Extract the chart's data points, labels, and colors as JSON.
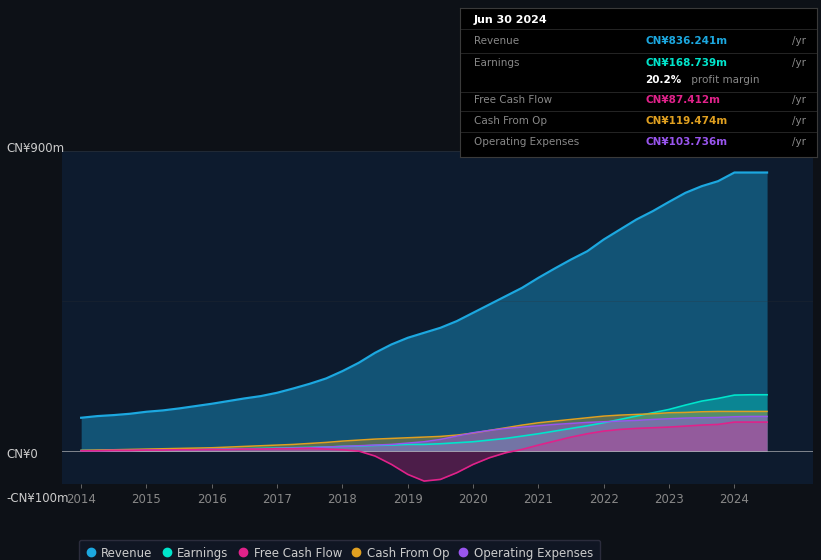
{
  "bg_color": "#0d1117",
  "plot_bg_color": "#0d1b2e",
  "ylim": [
    -100,
    900
  ],
  "xlim_start": 2013.7,
  "xlim_end": 2025.2,
  "xticks": [
    2014,
    2015,
    2016,
    2017,
    2018,
    2019,
    2020,
    2021,
    2022,
    2023,
    2024
  ],
  "colors": {
    "revenue": "#1ca8e0",
    "earnings": "#00e5cc",
    "free_cash_flow": "#e0228a",
    "cash_from_op": "#e0a020",
    "operating_expenses": "#9955ee"
  },
  "legend": [
    "Revenue",
    "Earnings",
    "Free Cash Flow",
    "Cash From Op",
    "Operating Expenses"
  ],
  "infobox": {
    "date": "Jun 30 2024",
    "revenue_label": "Revenue",
    "revenue_val": "CN¥836.241m",
    "revenue_color": "#1ca8e0",
    "earnings_label": "Earnings",
    "earnings_val": "CN¥168.739m",
    "earnings_color": "#00e5cc",
    "profit_margin": "20.2%",
    "fcf_label": "Free Cash Flow",
    "fcf_val": "CN¥87.412m",
    "fcf_color": "#e0228a",
    "cashop_label": "Cash From Op",
    "cashop_val": "CN¥119.474m",
    "cashop_color": "#e0a020",
    "opex_label": "Operating Expenses",
    "opex_val": "CN¥103.736m",
    "opex_color": "#9955ee"
  },
  "years": [
    2014.0,
    2014.25,
    2014.5,
    2014.75,
    2015.0,
    2015.25,
    2015.5,
    2015.75,
    2016.0,
    2016.25,
    2016.5,
    2016.75,
    2017.0,
    2017.25,
    2017.5,
    2017.75,
    2018.0,
    2018.25,
    2018.5,
    2018.75,
    2019.0,
    2019.25,
    2019.5,
    2019.75,
    2020.0,
    2020.25,
    2020.5,
    2020.75,
    2021.0,
    2021.25,
    2021.5,
    2021.75,
    2022.0,
    2022.25,
    2022.5,
    2022.75,
    2023.0,
    2023.25,
    2023.5,
    2023.75,
    2024.0,
    2024.25,
    2024.5
  ],
  "revenue": [
    100,
    105,
    108,
    112,
    118,
    122,
    128,
    135,
    142,
    150,
    158,
    165,
    175,
    188,
    202,
    218,
    240,
    265,
    295,
    320,
    340,
    355,
    370,
    390,
    415,
    440,
    465,
    490,
    520,
    548,
    575,
    600,
    635,
    665,
    695,
    720,
    748,
    775,
    795,
    810,
    836,
    836,
    836
  ],
  "earnings": [
    2,
    2,
    3,
    3,
    4,
    4,
    5,
    5,
    6,
    7,
    7,
    8,
    9,
    10,
    11,
    12,
    14,
    15,
    17,
    18,
    20,
    20,
    22,
    25,
    28,
    33,
    38,
    45,
    52,
    60,
    68,
    76,
    85,
    95,
    105,
    115,
    125,
    138,
    150,
    158,
    168,
    169,
    169
  ],
  "free_cash_flow": [
    1,
    1,
    2,
    2,
    3,
    3,
    4,
    4,
    5,
    5,
    6,
    6,
    7,
    7,
    8,
    6,
    4,
    0,
    -15,
    -40,
    -70,
    -90,
    -85,
    -65,
    -40,
    -20,
    -5,
    5,
    18,
    30,
    42,
    52,
    60,
    65,
    68,
    70,
    72,
    75,
    78,
    80,
    87,
    87,
    87
  ],
  "cash_from_op": [
    2,
    3,
    4,
    5,
    6,
    7,
    8,
    9,
    10,
    12,
    14,
    16,
    18,
    20,
    23,
    26,
    30,
    33,
    36,
    38,
    40,
    42,
    44,
    48,
    54,
    62,
    70,
    78,
    85,
    90,
    95,
    100,
    105,
    108,
    110,
    112,
    115,
    116,
    118,
    119,
    119,
    119,
    119
  ],
  "operating_expenses": [
    1,
    1,
    2,
    2,
    3,
    3,
    4,
    4,
    5,
    5,
    6,
    6,
    8,
    9,
    10,
    12,
    14,
    16,
    18,
    20,
    24,
    28,
    35,
    45,
    55,
    62,
    68,
    72,
    76,
    80,
    83,
    86,
    88,
    90,
    92,
    95,
    97,
    99,
    100,
    101,
    103,
    104,
    104
  ]
}
